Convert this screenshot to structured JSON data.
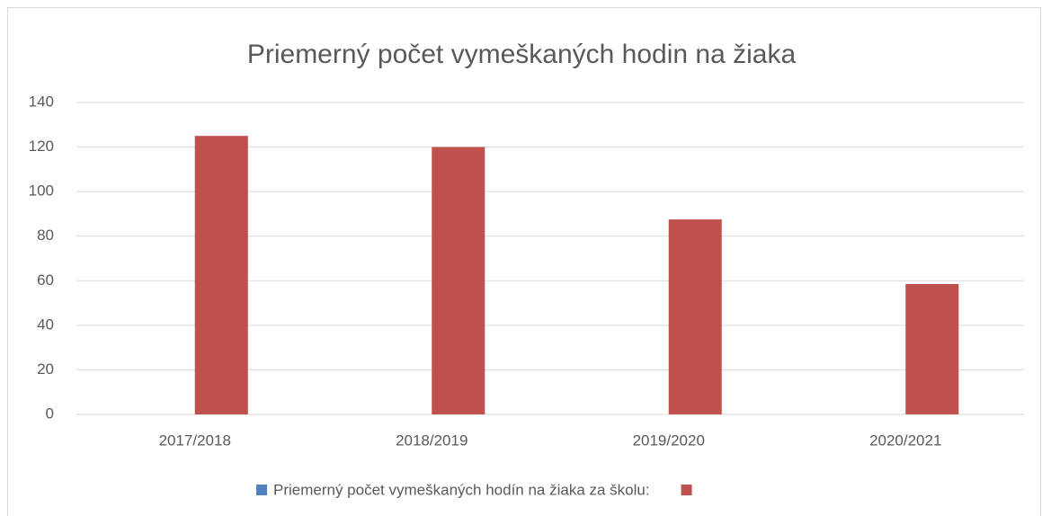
{
  "chart_data": {
    "type": "bar",
    "title": "Priemerný počet vymeškaných hodin na žiaka",
    "categories": [
      "2017/2018",
      "2018/2019",
      "2019/2020",
      "2020/2021"
    ],
    "series": [
      {
        "name": "Priemerný počet vymeškaných hodín na žiaka za školu:",
        "color": "#4f81bd",
        "values": [
          null,
          null,
          null,
          null
        ]
      },
      {
        "color": "#c0504d",
        "values": [
          125,
          120,
          87.5,
          58.5
        ]
      }
    ],
    "ylim": [
      0,
      140
    ],
    "yticks": [
      0,
      20,
      40,
      60,
      80,
      100,
      120,
      140
    ],
    "grid": true,
    "legend": "bottom"
  }
}
